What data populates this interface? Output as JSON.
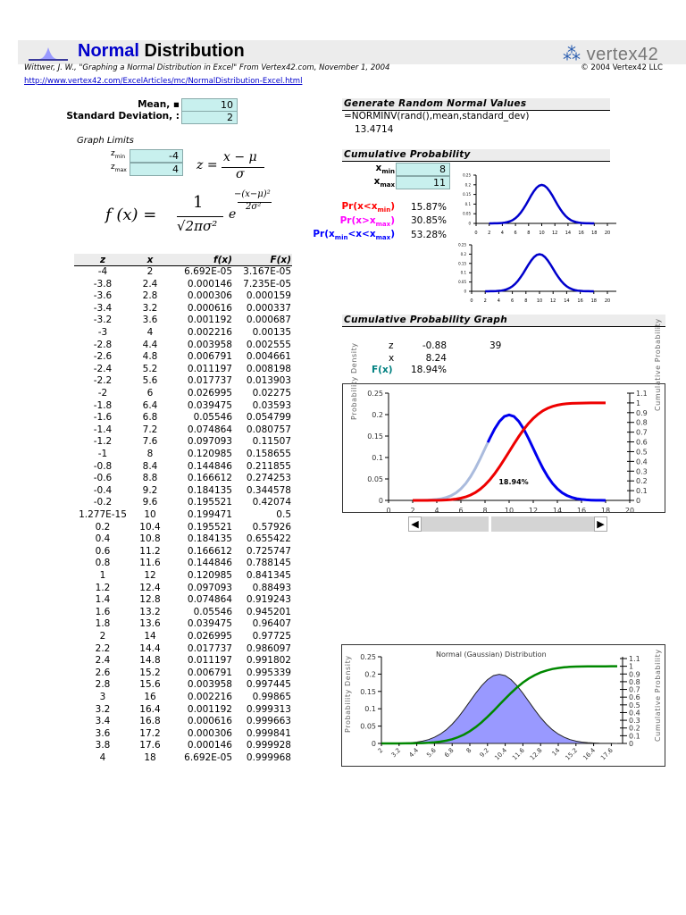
{
  "header": {
    "title_blue": "Normal",
    "title_rest": " Distribution",
    "citation": "Wittwer, J. W., \"Graphing a Normal Distribution in Excel\" From Vertex42.com, November 1, 2004",
    "copyright": "© 2004 Vertex42 LLC",
    "url": "http://www.vertex42.com/ExcelArticles/mc/NormalDistribution-Excel.html",
    "logo_text": "vertex42"
  },
  "inputs": {
    "mean_label": "Mean, ▪",
    "mean": "10",
    "sd_label": "Standard Deviation, :",
    "sd": "2",
    "graph_limits": "Graph Limits",
    "zmin_label": "z",
    "zmin_sub": "min",
    "zmin": "-4",
    "zmax_label": "z",
    "zmax_sub": "max",
    "zmax": "4"
  },
  "formulas": {
    "z_lhs": "z =",
    "z_num": "x − μ",
    "z_den": "σ",
    "f_lhs": "f (x) =",
    "f_num": "1",
    "f_den": "√2πσ²",
    "f_e": "e",
    "f_exp_num": "−(x−μ)²",
    "f_exp_den": "2σ²"
  },
  "table": {
    "headers": [
      "z",
      "x",
      "f(x)",
      "F(x)"
    ],
    "rows": [
      [
        "-4",
        "2",
        "6.692E-05",
        "3.167E-05"
      ],
      [
        "-3.8",
        "2.4",
        "0.000146",
        "7.235E-05"
      ],
      [
        "-3.6",
        "2.8",
        "0.000306",
        "0.000159"
      ],
      [
        "-3.4",
        "3.2",
        "0.000616",
        "0.000337"
      ],
      [
        "-3.2",
        "3.6",
        "0.001192",
        "0.000687"
      ],
      [
        "-3",
        "4",
        "0.002216",
        "0.00135"
      ],
      [
        "-2.8",
        "4.4",
        "0.003958",
        "0.002555"
      ],
      [
        "-2.6",
        "4.8",
        "0.006791",
        "0.004661"
      ],
      [
        "-2.4",
        "5.2",
        "0.011197",
        "0.008198"
      ],
      [
        "-2.2",
        "5.6",
        "0.017737",
        "0.013903"
      ],
      [
        "-2",
        "6",
        "0.026995",
        "0.02275"
      ],
      [
        "-1.8",
        "6.4",
        "0.039475",
        "0.03593"
      ],
      [
        "-1.6",
        "6.8",
        "0.05546",
        "0.054799"
      ],
      [
        "-1.4",
        "7.2",
        "0.074864",
        "0.080757"
      ],
      [
        "-1.2",
        "7.6",
        "0.097093",
        "0.11507"
      ],
      [
        "-1",
        "8",
        "0.120985",
        "0.158655"
      ],
      [
        "-0.8",
        "8.4",
        "0.144846",
        "0.211855"
      ],
      [
        "-0.6",
        "8.8",
        "0.166612",
        "0.274253"
      ],
      [
        "-0.4",
        "9.2",
        "0.184135",
        "0.344578"
      ],
      [
        "-0.2",
        "9.6",
        "0.195521",
        "0.42074"
      ],
      [
        "1.277E-15",
        "10",
        "0.199471",
        "0.5"
      ],
      [
        "0.2",
        "10.4",
        "0.195521",
        "0.57926"
      ],
      [
        "0.4",
        "10.8",
        "0.184135",
        "0.655422"
      ],
      [
        "0.6",
        "11.2",
        "0.166612",
        "0.725747"
      ],
      [
        "0.8",
        "11.6",
        "0.144846",
        "0.788145"
      ],
      [
        "1",
        "12",
        "0.120985",
        "0.841345"
      ],
      [
        "1.2",
        "12.4",
        "0.097093",
        "0.88493"
      ],
      [
        "1.4",
        "12.8",
        "0.074864",
        "0.919243"
      ],
      [
        "1.6",
        "13.2",
        "0.05546",
        "0.945201"
      ],
      [
        "1.8",
        "13.6",
        "0.039475",
        "0.96407"
      ],
      [
        "2",
        "14",
        "0.026995",
        "0.97725"
      ],
      [
        "2.2",
        "14.4",
        "0.017737",
        "0.986097"
      ],
      [
        "2.4",
        "14.8",
        "0.011197",
        "0.991802"
      ],
      [
        "2.6",
        "15.2",
        "0.006791",
        "0.995339"
      ],
      [
        "2.8",
        "15.6",
        "0.003958",
        "0.997445"
      ],
      [
        "3",
        "16",
        "0.002216",
        "0.99865"
      ],
      [
        "3.2",
        "16.4",
        "0.001192",
        "0.999313"
      ],
      [
        "3.4",
        "16.8",
        "0.000616",
        "0.999663"
      ],
      [
        "3.6",
        "17.2",
        "0.000306",
        "0.999841"
      ],
      [
        "3.8",
        "17.6",
        "0.000146",
        "0.999928"
      ],
      [
        "4",
        "18",
        "6.692E-05",
        "0.999968"
      ]
    ]
  },
  "random": {
    "header": "Generate Random Normal Values",
    "formula": "=NORMINV(rand(),mean,standard_dev)",
    "value": "13.4714"
  },
  "cumulative": {
    "header": "Cumulative Probability",
    "xmin_label": "x",
    "xmin_sub": "min",
    "xmin": "8",
    "xmax_label": "x",
    "xmax_sub": "max",
    "xmax": "11",
    "pr_lt": "Pr(x<x",
    "pr_lt_sub": "min",
    "pr_lt_end": ")",
    "pr_lt_val": "15.87%",
    "pr_gt": "Pr(x>x",
    "pr_gt_sub": "max",
    "pr_gt_end": ")",
    "pr_gt_val": "30.85%",
    "pr_mid": "Pr(x",
    "pr_mid_sub1": "min",
    "pr_mid_mid": "<x<x",
    "pr_mid_sub2": "max",
    "pr_mid_end": ")",
    "pr_mid_val": "53.28%"
  },
  "graph": {
    "header": "Cumulative Probability Graph",
    "z_label": "z",
    "z": "-0.88",
    "slider": "39",
    "x_label": "x",
    "x": "8.24",
    "F_label": "F(x)",
    "F": "18.94%"
  },
  "colors": {
    "pr_lt": "#ff0000",
    "pr_gt": "#ff00ff",
    "pr_mid": "#0000ff",
    "density": "#0000ee",
    "density_light": "#aabbdd",
    "cdf": "#ee0000",
    "fill": "#9999ff",
    "cdf_green": "#008800",
    "fx_label": "#008080",
    "input": "#c8f0ee"
  },
  "chart_data": [
    {
      "type": "line",
      "x_source": "table x",
      "y_source": "table f(x)",
      "xlim": [
        0,
        20
      ],
      "ylim": [
        0,
        0.25
      ],
      "xticks": [
        "0",
        "2",
        "4",
        "6",
        "8",
        "10",
        "12",
        "14",
        "16",
        "18",
        "20"
      ],
      "yticks": [
        "0",
        "0.05",
        "0.1",
        "0.15",
        "0.2",
        "0.25"
      ]
    },
    {
      "type": "line",
      "x_source": "table x",
      "y_source": "table f(x)",
      "xlim": [
        0,
        20
      ],
      "ylim": [
        0,
        0.25
      ],
      "xticks": [
        "0",
        "2",
        "4",
        "6",
        "8",
        "10",
        "12",
        "14",
        "16",
        "18",
        "20"
      ],
      "yticks": [
        "0",
        "0.05",
        "0.1",
        "0.15",
        "0.2",
        "0.25"
      ]
    },
    {
      "type": "line",
      "series_source": [
        "table f(x)",
        "table F(x)"
      ],
      "highlight_x_max": 8.24,
      "annotation": "18.94%",
      "xlim": [
        0,
        20
      ],
      "ylim": [
        0,
        0.25
      ],
      "y2lim": [
        0,
        1.1
      ],
      "ylabel": "Probability Density",
      "y2label": "Cumulative Probability",
      "xticks": [
        "0",
        "2",
        "4",
        "6",
        "8",
        "10",
        "12",
        "14",
        "16",
        "18",
        "20"
      ],
      "yticks": [
        "0",
        "0.05",
        "0.1",
        "0.15",
        "0.2",
        "0.25"
      ],
      "y2ticks": [
        "0",
        "0.1",
        "0.2",
        "0.3",
        "0.4",
        "0.5",
        "0.6",
        "0.7",
        "0.8",
        "0.9",
        "1",
        "1.1"
      ]
    },
    {
      "type": "area",
      "title": "Normal (Gaussian) Distribution",
      "series_source": [
        "table f(x)",
        "table F(x)"
      ],
      "ylim": [
        0,
        0.25
      ],
      "y2lim": [
        0,
        1.1
      ],
      "ylabel": "Probability Density",
      "y2label": "Cumulative Probability",
      "xticks": [
        "2",
        "3.2",
        "4.4",
        "5.6",
        "6.8",
        "8",
        "9.2",
        "10.4",
        "11.6",
        "12.8",
        "14",
        "15.2",
        "16.4",
        "17.6"
      ],
      "yticks": [
        "0",
        "0.05",
        "0.1",
        "0.15",
        "0.2",
        "0.25"
      ],
      "y2ticks": [
        "0",
        "0.1",
        "0.2",
        "0.3",
        "0.4",
        "0.5",
        "0.6",
        "0.7",
        "0.8",
        "0.9",
        "1",
        "1.1"
      ]
    }
  ]
}
